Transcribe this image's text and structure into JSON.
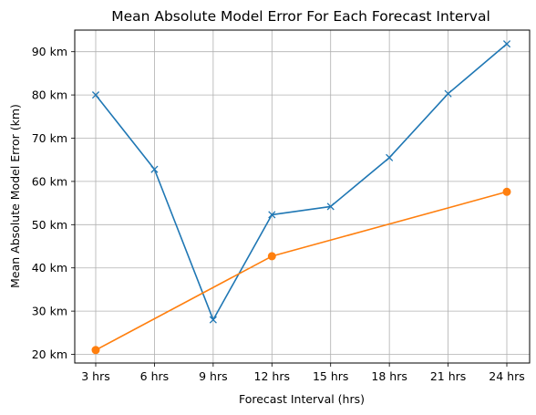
{
  "chart_data": {
    "type": "line",
    "title": "Mean Absolute Model Error For Each Forecast Interval",
    "xlabel": "Forecast Interval (hrs)",
    "ylabel": "Mean Absolute Model Error (km)",
    "categories": [
      "3 hrs",
      "6 hrs",
      "9 hrs",
      "12 hrs",
      "15 hrs",
      "18 hrs",
      "21 hrs",
      "24 hrs"
    ],
    "ylim": [
      18,
      95
    ],
    "yticks": [
      20,
      30,
      40,
      50,
      60,
      70,
      80,
      90
    ],
    "ytick_labels": [
      "20 km",
      "30 km",
      "40 km",
      "50 km",
      "60 km",
      "70 km",
      "80 km",
      "90 km"
    ],
    "grid": true,
    "series": [
      {
        "color": "#1f77b4",
        "marker": "x",
        "points": [
          {
            "x": "3 hrs",
            "y": 80.0
          },
          {
            "x": "6 hrs",
            "y": 62.8
          },
          {
            "x": "9 hrs",
            "y": 28.0
          },
          {
            "x": "12 hrs",
            "y": 52.3
          },
          {
            "x": "15 hrs",
            "y": 54.2
          },
          {
            "x": "18 hrs",
            "y": 65.5
          },
          {
            "x": "21 hrs",
            "y": 80.3
          },
          {
            "x": "24 hrs",
            "y": 91.8
          }
        ]
      },
      {
        "color": "#ff7f0e",
        "marker": "o",
        "points": [
          {
            "x": "3 hrs",
            "y": 21.0
          },
          {
            "x": "12 hrs",
            "y": 42.7
          },
          {
            "x": "24 hrs",
            "y": 57.6
          }
        ]
      }
    ]
  }
}
